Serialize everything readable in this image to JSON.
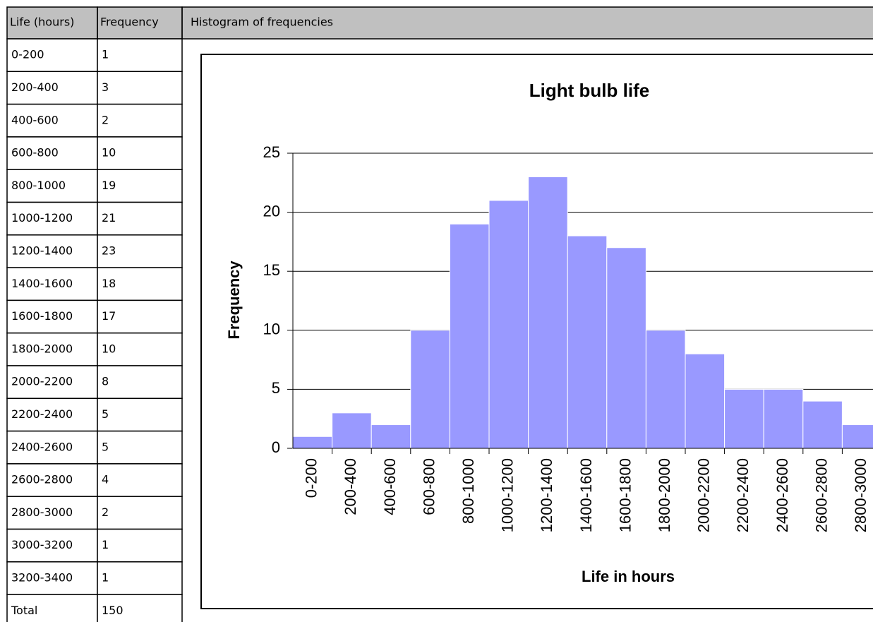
{
  "table": {
    "headers": [
      "Life (hours)",
      "Frequency"
    ],
    "rows": [
      [
        "0-200",
        1
      ],
      [
        "200-400",
        3
      ],
      [
        "400-600",
        2
      ],
      [
        "600-800",
        10
      ],
      [
        "800-1000",
        19
      ],
      [
        "1000-1200",
        21
      ],
      [
        "1200-1400",
        23
      ],
      [
        "1400-1600",
        18
      ],
      [
        "1600-1800",
        17
      ],
      [
        "1800-2000",
        10
      ],
      [
        "2000-2200",
        8
      ],
      [
        "2200-2400",
        5
      ],
      [
        "2400-2600",
        5
      ],
      [
        "2600-2800",
        4
      ],
      [
        "2800-3000",
        2
      ],
      [
        "3000-3200",
        1
      ],
      [
        "3200-3400",
        1
      ],
      [
        "Total",
        150
      ]
    ]
  },
  "panel_header": "Histogram of frequencies",
  "chart_data": {
    "type": "bar",
    "title": "Light bulb life",
    "x_label": "Life in hours",
    "y_label": "Frequency",
    "categories": [
      "0-200",
      "200-400",
      "400-600",
      "600-800",
      "800-1000",
      "1000-1200",
      "1200-1400",
      "1400-1600",
      "1600-1800",
      "1800-2000",
      "2000-2200",
      "2200-2400",
      "2400-2600",
      "2600-2800",
      "2800-3000"
    ],
    "values": [
      1,
      3,
      2,
      10,
      19,
      21,
      23,
      18,
      17,
      10,
      8,
      5,
      5,
      4,
      2
    ],
    "color": "#9999ff",
    "ylim": [
      0,
      25
    ],
    "yticks": [
      0,
      5,
      10,
      15,
      20,
      25
    ],
    "grid": true
  }
}
